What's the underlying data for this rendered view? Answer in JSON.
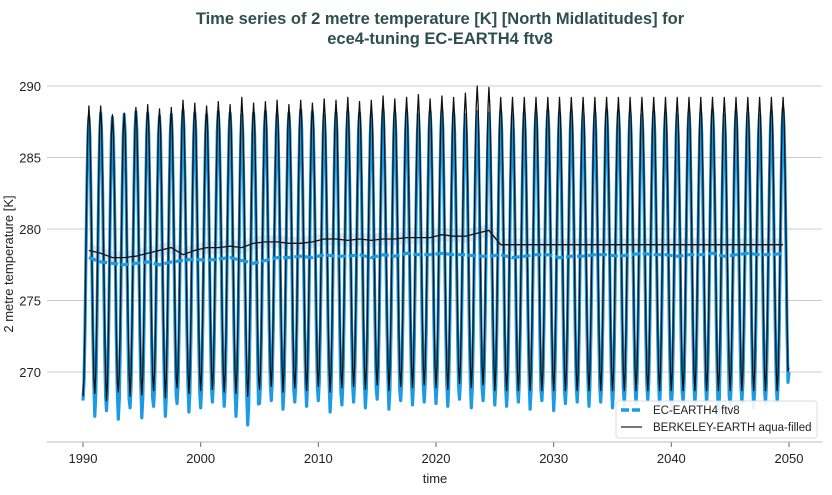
{
  "chart_data": {
    "type": "line",
    "title": "Time series of 2 metre temperature [K] [North Midlatitudes] for\nece4-tuning EC-EARTH4 ftv8",
    "title_lines": [
      "Time series of 2 metre temperature [K] [North Midlatitudes] for",
      "ece4-tuning EC-EARTH4 ftv8"
    ],
    "xlabel": "time",
    "ylabel": "2 metre temperature [K]",
    "xlim": [
      1986.5,
      2053.5
    ],
    "ylim": [
      265.5,
      292
    ],
    "xticks": [
      1990,
      2000,
      2010,
      2020,
      2030,
      2040,
      2050
    ],
    "yticks": [
      270,
      275,
      280,
      285,
      290
    ],
    "grid": "horizontal",
    "legend_position": "bottom-right",
    "colors": {
      "ec_earth": "#1a9be3",
      "berkeley": "#111111",
      "title": "#2f4f4f",
      "grid": "#cccccc"
    },
    "years": [
      1990,
      1991,
      1992,
      1993,
      1994,
      1995,
      1996,
      1997,
      1998,
      1999,
      2000,
      2001,
      2002,
      2003,
      2004,
      2005,
      2006,
      2007,
      2008,
      2009,
      2010,
      2011,
      2012,
      2013,
      2014,
      2015,
      2016,
      2017,
      2018,
      2019,
      2020,
      2021,
      2022,
      2023,
      2024,
      2025,
      2026,
      2027,
      2028,
      2029,
      2030,
      2031,
      2032,
      2033,
      2034,
      2035,
      2036,
      2037,
      2038,
      2039,
      2040,
      2041,
      2042,
      2043,
      2044,
      2045,
      2046,
      2047,
      2048,
      2049
    ],
    "series": [
      {
        "name": "EC-EARTH4 ftv8",
        "style": "thick-blue",
        "annual_max": [
          287.8,
          288.1,
          287.8,
          288.0,
          288.2,
          288.1,
          287.9,
          288.0,
          288.3,
          288.1,
          288.0,
          288.2,
          288.1,
          288.0,
          288.1,
          288.2,
          288.0,
          288.1,
          288.3,
          288.2,
          288.0,
          288.1,
          288.2,
          288.1,
          288.0,
          288.3,
          288.1,
          288.2,
          288.0,
          288.2,
          288.3,
          288.1,
          288.0,
          288.2,
          288.1,
          288.2,
          288.0,
          288.1,
          288.2,
          288.3,
          288.1,
          288.2,
          288.0,
          288.1,
          288.3,
          288.2,
          288.1,
          288.0,
          288.2,
          288.1,
          288.0,
          288.2,
          288.1,
          288.3,
          288.0,
          288.2,
          288.1,
          288.0,
          288.2,
          288.4
        ],
        "annual_min": [
          268.0,
          266.9,
          267.3,
          266.7,
          267.5,
          266.8,
          267.6,
          266.9,
          267.8,
          267.2,
          267.5,
          267.9,
          267.6,
          266.9,
          266.3,
          267.8,
          268.0,
          267.4,
          267.9,
          267.6,
          268.0,
          267.2,
          267.7,
          267.9,
          267.5,
          268.1,
          267.4,
          268.0,
          267.7,
          267.9,
          267.8,
          267.6,
          268.1,
          267.5,
          268.0,
          267.7,
          267.6,
          267.9,
          267.4,
          268.0,
          267.3,
          267.8,
          267.9,
          267.6,
          267.9,
          267.5,
          267.7,
          267.8,
          268.0,
          267.6,
          267.3,
          267.9,
          267.7,
          267.8,
          266.9,
          267.6,
          267.9,
          267.5,
          267.8,
          267.9
        ],
        "running_mean": [
          278.0,
          277.7,
          277.6,
          277.5,
          277.6,
          277.7,
          277.5,
          277.7,
          277.8,
          277.9,
          277.8,
          277.9,
          278.0,
          277.8,
          277.6,
          277.8,
          278.0,
          278.0,
          278.1,
          278.0,
          278.2,
          278.1,
          278.1,
          278.2,
          278.0,
          278.2,
          278.1,
          278.3,
          278.2,
          278.2,
          278.3,
          278.2,
          278.2,
          278.1,
          278.1,
          278.2,
          278.0,
          278.1,
          278.2,
          278.2,
          278.0,
          278.1,
          278.1,
          278.2,
          278.2,
          278.1,
          278.2,
          278.3,
          278.2,
          278.2,
          278.1,
          278.2,
          278.2,
          278.3,
          278.1,
          278.2,
          278.3,
          278.2,
          278.2,
          278.3
        ]
      },
      {
        "name": "BERKELEY-EARTH aqua-filled",
        "style": "thin-black",
        "annual_max": [
          288.6,
          288.6,
          288.0,
          288.1,
          288.5,
          288.7,
          288.4,
          288.5,
          289.0,
          288.8,
          288.6,
          288.9,
          288.7,
          289.2,
          288.8,
          288.9,
          289.0,
          288.7,
          289.0,
          288.8,
          289.1,
          289.0,
          289.2,
          288.9,
          289.0,
          289.3,
          289.1,
          289.2,
          289.4,
          289.1,
          289.3,
          289.2,
          289.5,
          290.0,
          289.9,
          289.2,
          289.2,
          289.2,
          289.2,
          289.2,
          289.2,
          289.2,
          289.2,
          289.2,
          289.2,
          289.2,
          289.2,
          289.2,
          289.2,
          289.2,
          289.2,
          289.2,
          289.2,
          289.2,
          289.2,
          289.2,
          289.2,
          289.2,
          289.2,
          289.2
        ],
        "annual_min": [
          268.3,
          268.5,
          268.0,
          268.6,
          268.3,
          268.4,
          268.7,
          268.2,
          268.9,
          268.5,
          268.7,
          268.8,
          268.6,
          268.5,
          268.3,
          268.8,
          269.0,
          268.6,
          268.9,
          268.7,
          269.0,
          268.6,
          268.9,
          269.0,
          268.8,
          269.1,
          268.7,
          269.0,
          268.9,
          269.1,
          268.9,
          268.8,
          269.2,
          268.9,
          269.1,
          268.7,
          268.7,
          268.7,
          268.7,
          268.7,
          268.7,
          268.7,
          268.7,
          268.7,
          268.7,
          268.7,
          268.7,
          268.7,
          268.7,
          268.7,
          268.7,
          268.7,
          268.7,
          268.7,
          268.7,
          268.7,
          268.7,
          268.7,
          268.7,
          268.7
        ],
        "running_mean": [
          278.5,
          278.3,
          278.0,
          278.0,
          278.1,
          278.3,
          278.5,
          278.7,
          278.2,
          278.5,
          278.7,
          278.7,
          278.8,
          278.7,
          279.0,
          279.1,
          279.1,
          279.0,
          279.0,
          279.1,
          279.3,
          279.3,
          279.2,
          279.3,
          279.2,
          279.3,
          279.3,
          279.4,
          279.4,
          279.4,
          279.6,
          279.5,
          279.5,
          279.7,
          279.9,
          278.9,
          278.9,
          278.9,
          278.9,
          278.9,
          278.9,
          278.9,
          278.9,
          278.9,
          278.9,
          278.9,
          278.9,
          278.9,
          278.9,
          278.9,
          278.9,
          278.9,
          278.9,
          278.9,
          278.9,
          278.9,
          278.9,
          278.9,
          278.9,
          278.9
        ]
      }
    ]
  }
}
